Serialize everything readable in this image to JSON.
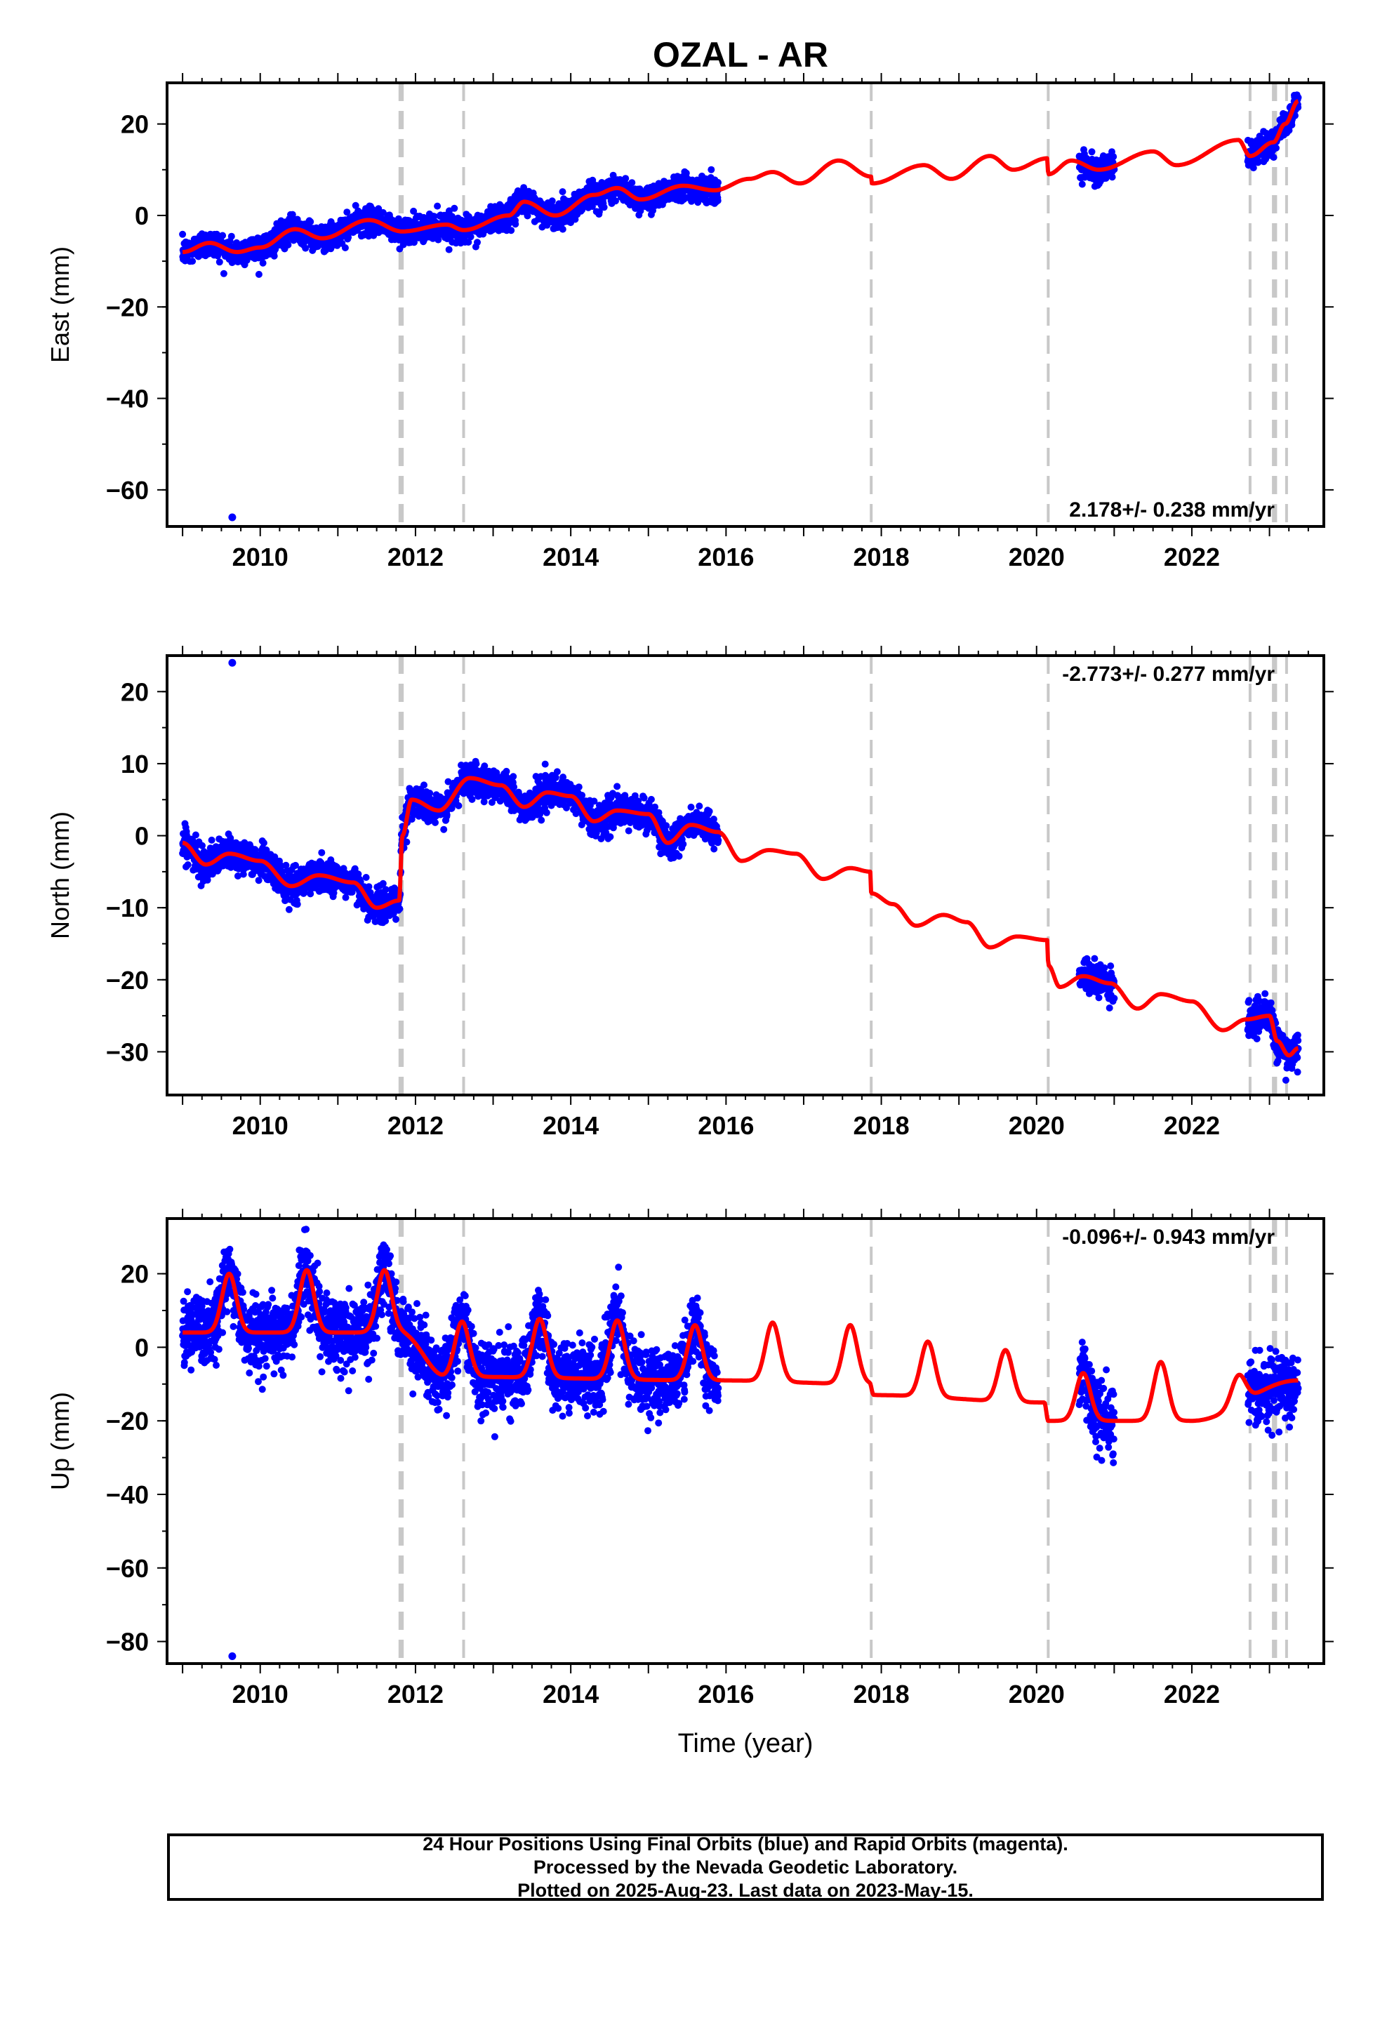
{
  "title": "OZAL - AR",
  "colors": {
    "data": "#0000ff",
    "model": "#ff0000",
    "offset": "#c8c8c8",
    "axis": "#000000"
  },
  "chart_data": [
    {
      "type": "scatter",
      "name": "east",
      "ylabel": "East (mm)",
      "xlabel": "",
      "xlim": [
        2008.8,
        2023.7
      ],
      "ylim": [
        -68,
        29
      ],
      "x_ticks": [
        2010,
        2012,
        2014,
        2016,
        2018,
        2020,
        2022
      ],
      "y_ticks": [
        20,
        0,
        -20,
        -40,
        -60
      ],
      "rate_label": "2.178+/- 0.238 mm/yr",
      "rate_position": "bottom-right",
      "offsets": [
        2011.8,
        2011.83,
        2012.62,
        2017.87,
        2020.15,
        2022.75,
        2023.05,
        2023.08,
        2023.22
      ],
      "data_segments": [
        [
          2009.0,
          2015.9
        ],
        [
          2020.55,
          2021.0
        ],
        [
          2022.72,
          2023.37
        ]
      ],
      "model_knots": [
        [
          2009.0,
          -8
        ],
        [
          2009.35,
          -6
        ],
        [
          2009.7,
          -8
        ],
        [
          2010.0,
          -7
        ],
        [
          2010.45,
          -3
        ],
        [
          2010.8,
          -5
        ],
        [
          2011.4,
          -1
        ],
        [
          2011.83,
          -3.5
        ],
        [
          2012.4,
          -2
        ],
        [
          2012.62,
          -3.2
        ],
        [
          2013.2,
          0
        ],
        [
          2013.4,
          3
        ],
        [
          2013.8,
          0
        ],
        [
          2014.3,
          4.5
        ],
        [
          2014.6,
          6
        ],
        [
          2014.9,
          3.5
        ],
        [
          2015.45,
          6.5
        ],
        [
          2015.85,
          5.5
        ],
        [
          2016.3,
          8
        ],
        [
          2016.6,
          9.5
        ],
        [
          2016.95,
          7
        ],
        [
          2017.45,
          12
        ],
        [
          2017.87,
          8.5
        ],
        [
          2017.88,
          7
        ],
        [
          2018.55,
          11
        ],
        [
          2018.9,
          8
        ],
        [
          2019.4,
          13
        ],
        [
          2019.7,
          10
        ],
        [
          2020.14,
          12.5
        ],
        [
          2020.15,
          9
        ],
        [
          2020.45,
          12
        ],
        [
          2020.8,
          10
        ],
        [
          2021.5,
          14
        ],
        [
          2021.8,
          11
        ],
        [
          2022.6,
          16.5
        ],
        [
          2022.75,
          13
        ],
        [
          2023.05,
          16
        ],
        [
          2023.2,
          20
        ],
        [
          2023.37,
          25
        ]
      ],
      "outliers": [
        [
          2009.64,
          -66
        ]
      ],
      "scatter_sigma": 1.4
    },
    {
      "type": "scatter",
      "name": "north",
      "ylabel": "North (mm)",
      "xlabel": "",
      "xlim": [
        2008.8,
        2023.7
      ],
      "ylim": [
        -36,
        25
      ],
      "x_ticks": [
        2010,
        2012,
        2014,
        2016,
        2018,
        2020,
        2022
      ],
      "y_ticks": [
        20,
        10,
        0,
        -10,
        -20,
        -30
      ],
      "rate_label": "-2.773+/- 0.277 mm/yr",
      "rate_position": "top-right",
      "offsets": [
        2011.8,
        2011.83,
        2012.62,
        2017.87,
        2020.15,
        2022.75,
        2023.05,
        2023.08,
        2023.22
      ],
      "data_segments": [
        [
          2009.0,
          2015.9
        ],
        [
          2020.55,
          2021.0
        ],
        [
          2022.72,
          2023.37
        ]
      ],
      "model_knots": [
        [
          2009.0,
          -1
        ],
        [
          2009.3,
          -4
        ],
        [
          2009.6,
          -2.5
        ],
        [
          2010.0,
          -3.5
        ],
        [
          2010.4,
          -7
        ],
        [
          2010.75,
          -5.5
        ],
        [
          2011.2,
          -6.5
        ],
        [
          2011.5,
          -10
        ],
        [
          2011.79,
          -9
        ],
        [
          2011.83,
          0
        ],
        [
          2011.95,
          5
        ],
        [
          2012.3,
          3.5
        ],
        [
          2012.7,
          8
        ],
        [
          2013.1,
          7
        ],
        [
          2013.4,
          4
        ],
        [
          2013.7,
          6
        ],
        [
          2014.0,
          5.5
        ],
        [
          2014.3,
          2
        ],
        [
          2014.6,
          3.5
        ],
        [
          2015.0,
          3
        ],
        [
          2015.25,
          -1
        ],
        [
          2015.55,
          1.5
        ],
        [
          2015.9,
          0.5
        ],
        [
          2016.2,
          -3.5
        ],
        [
          2016.55,
          -2
        ],
        [
          2016.9,
          -2.5
        ],
        [
          2017.25,
          -6
        ],
        [
          2017.6,
          -4.5
        ],
        [
          2017.86,
          -5
        ],
        [
          2017.87,
          -8
        ],
        [
          2018.15,
          -9.5
        ],
        [
          2018.45,
          -12.5
        ],
        [
          2018.8,
          -11
        ],
        [
          2019.1,
          -12
        ],
        [
          2019.4,
          -15.5
        ],
        [
          2019.75,
          -14
        ],
        [
          2020.14,
          -14.5
        ],
        [
          2020.15,
          -18
        ],
        [
          2020.3,
          -21
        ],
        [
          2020.6,
          -19.5
        ],
        [
          2020.95,
          -20.5
        ],
        [
          2021.3,
          -24
        ],
        [
          2021.6,
          -22
        ],
        [
          2022.0,
          -23
        ],
        [
          2022.4,
          -27
        ],
        [
          2022.7,
          -25.5
        ],
        [
          2023.0,
          -25
        ],
        [
          2023.1,
          -28.5
        ],
        [
          2023.25,
          -30.5
        ],
        [
          2023.37,
          -29.5
        ]
      ],
      "outliers": [
        [
          2009.64,
          24
        ]
      ],
      "scatter_sigma": 1.1
    },
    {
      "type": "scatter",
      "name": "up",
      "ylabel": "Up (mm)",
      "xlabel": "Time (year)",
      "xlim": [
        2008.8,
        2023.7
      ],
      "ylim": [
        -86,
        35
      ],
      "x_ticks": [
        2010,
        2012,
        2014,
        2016,
        2018,
        2020,
        2022
      ],
      "y_ticks": [
        20,
        0,
        -20,
        -40,
        -60,
        -80
      ],
      "rate_label": "-0.096+/- 0.943 mm/yr",
      "rate_position": "top-right",
      "offsets": [
        2011.8,
        2011.83,
        2012.62,
        2017.87,
        2020.15,
        2022.75,
        2023.05,
        2023.08,
        2023.22
      ],
      "data_segments": [
        [
          2009.0,
          2015.9
        ],
        [
          2020.55,
          2021.0
        ],
        [
          2022.72,
          2023.37
        ]
      ],
      "seasonal": {
        "peaks": [
          2009.6,
          2010.6,
          2011.6,
          2012.6,
          2013.6,
          2014.6,
          2015.6,
          2016.6,
          2017.6,
          2018.6,
          2019.6,
          2020.6,
          2021.6,
          2022.6
        ],
        "baseline_knots": [
          [
            2009.0,
            4
          ],
          [
            2011.8,
            4
          ],
          [
            2012.4,
            -8
          ],
          [
            2015.9,
            -9
          ],
          [
            2017.85,
            -10
          ],
          [
            2017.9,
            -13
          ],
          [
            2020.1,
            -15
          ],
          [
            2020.15,
            -20
          ],
          [
            2022.0,
            -20
          ],
          [
            2023.37,
            -9
          ]
        ],
        "amplitude": [
          16,
          17,
          17,
          15,
          16,
          16,
          15,
          16,
          16,
          15,
          14,
          13,
          16,
          8
        ]
      },
      "outliers": [
        [
          2009.64,
          -84
        ]
      ],
      "scatter_sigma": 4.5
    }
  ],
  "footer": {
    "line1": "24 Hour Positions Using Final Orbits (blue) and Rapid Orbits (magenta).",
    "line2": "Processed by the Nevada Geodetic Laboratory.",
    "line3": "Plotted on 2025-Aug-23. Last data on 2023-May-15."
  }
}
